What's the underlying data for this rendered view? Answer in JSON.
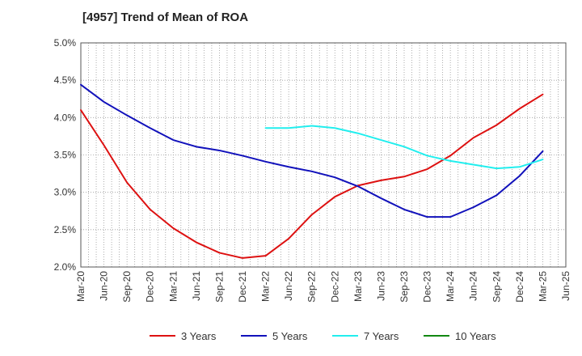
{
  "title": "[4957]  Trend of Mean of ROA",
  "chart_data": {
    "type": "line",
    "title": "[4957]  Trend of Mean of ROA",
    "x": [
      "Mar-20",
      "Jun-20",
      "Sep-20",
      "Dec-20",
      "Mar-21",
      "Jun-21",
      "Sep-21",
      "Dec-21",
      "Mar-22",
      "Jun-22",
      "Sep-22",
      "Dec-22",
      "Mar-23",
      "Jun-23",
      "Sep-23",
      "Dec-23",
      "Mar-24",
      "Jun-24",
      "Sep-24",
      "Dec-24",
      "Mar-25",
      "Jun-25"
    ],
    "y_ticks": [
      "2.0%",
      "2.5%",
      "3.0%",
      "3.5%",
      "4.0%",
      "4.5%",
      "5.0%"
    ],
    "ylim": [
      2.0,
      5.0
    ],
    "grid": true,
    "legend_position": "bottom",
    "series": [
      {
        "name": "3 Years",
        "color": "#dd1111",
        "values": [
          4.1,
          3.63,
          3.13,
          2.77,
          2.52,
          2.33,
          2.19,
          2.12,
          2.15,
          2.38,
          2.7,
          2.94,
          3.09,
          3.16,
          3.21,
          3.31,
          3.49,
          3.73,
          3.9,
          4.12,
          4.31,
          null
        ]
      },
      {
        "name": "5 Years",
        "color": "#1111bb",
        "values": [
          4.44,
          4.21,
          4.03,
          3.86,
          3.7,
          3.61,
          3.56,
          3.49,
          3.41,
          3.34,
          3.28,
          3.2,
          3.08,
          2.92,
          2.77,
          2.67,
          2.67,
          2.8,
          2.96,
          3.22,
          3.55,
          null
        ]
      },
      {
        "name": "7 Years",
        "color": "#22eeee",
        "values": [
          null,
          null,
          null,
          null,
          null,
          null,
          null,
          null,
          3.86,
          3.86,
          3.89,
          3.86,
          3.79,
          3.7,
          3.61,
          3.49,
          3.42,
          3.37,
          3.32,
          3.34,
          3.44,
          null
        ]
      },
      {
        "name": "10 Years",
        "color": "#118811",
        "values": [
          null,
          null,
          null,
          null,
          null,
          null,
          null,
          null,
          null,
          null,
          null,
          null,
          null,
          null,
          null,
          null,
          null,
          null,
          null,
          null,
          null,
          null
        ]
      }
    ]
  }
}
